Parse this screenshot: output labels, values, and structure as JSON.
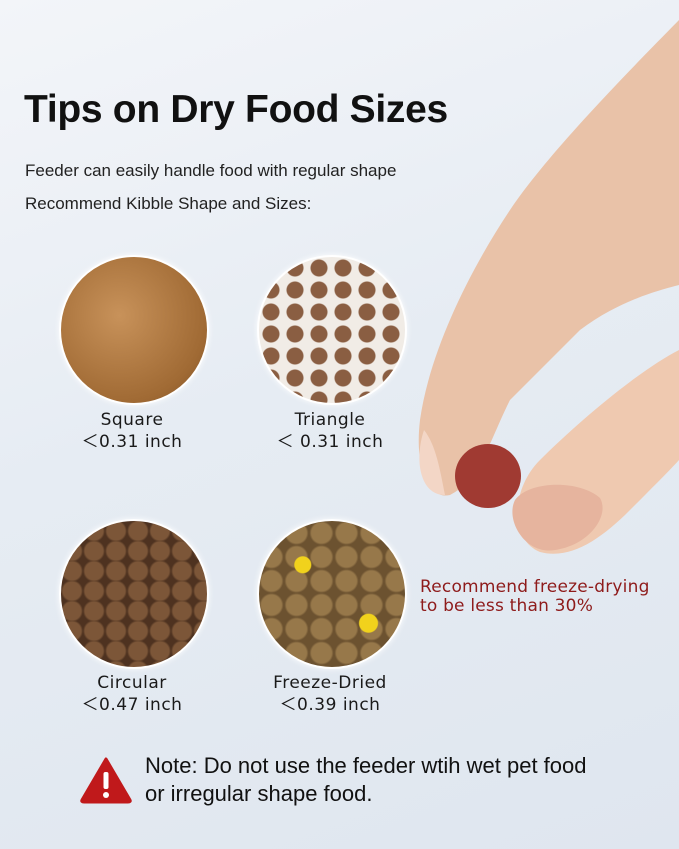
{
  "title": "Tips on Dry Food Sizes",
  "subtitle": "Feeder can easily handle food with regular shape",
  "recommend_heading": "Recommend Kibble Shape and Sizes:",
  "kibbles": [
    {
      "name": "Square",
      "size": "＜0.31 inch",
      "color": "#b07a3e"
    },
    {
      "name": "Triangle",
      "size": "＜ 0.31 inch",
      "color": "#7a5238"
    },
    {
      "name": "Circular",
      "size": "＜0.47 inch",
      "color": "#6e4a30"
    },
    {
      "name": "Freeze-Dried",
      "size": "＜0.39 inch",
      "color": "#8a6a3e"
    }
  ],
  "freeze_note": {
    "line1": "Recommend freeze-drying",
    "line2": "to be less than 30%",
    "color": "#8e1b1b"
  },
  "warning": {
    "icon": "warning-triangle-icon",
    "line1": "Note: Do not use the feeder wtih wet pet food",
    "line2": "or irregular shape food.",
    "color": "#c0191b"
  }
}
